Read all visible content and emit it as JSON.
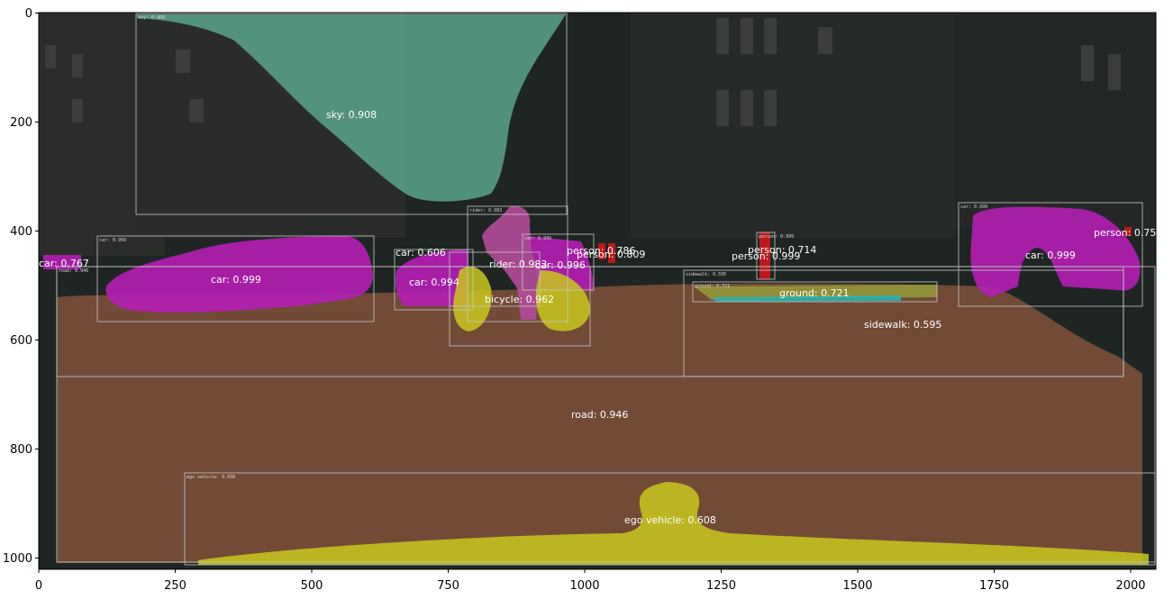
{
  "x_axis": {
    "ticks": [
      "0",
      "250",
      "500",
      "750",
      "1000",
      "1250",
      "1500",
      "1750",
      "2000"
    ]
  },
  "y_axis": {
    "ticks": [
      "0",
      "200",
      "400",
      "600",
      "800",
      "1000"
    ]
  },
  "scene": {
    "description": "dusk city street segmentation overlay"
  },
  "detections": [
    {
      "id": "sky",
      "label": "sky: 0.908",
      "class": "sky",
      "box_label": "sky: 0.908"
    },
    {
      "id": "car-left-big",
      "label": "car: 0.999",
      "class": "car",
      "box_label": "car: 0.999"
    },
    {
      "id": "car-far-left",
      "label": "car: 0.767",
      "class": "car",
      "box_label": "road: 0.946"
    },
    {
      "id": "car-mid-1",
      "label": "car: 0.606",
      "class": "car",
      "box_label": ""
    },
    {
      "id": "car-mid-2",
      "label": "car: 0.994",
      "class": "car",
      "box_label": ""
    },
    {
      "id": "rider",
      "label": "rider: 0.983",
      "class": "rider",
      "box_label": "rider: 0.983"
    },
    {
      "id": "car-center",
      "label": "car: 0.996",
      "class": "car",
      "box_label": "car: 0.996"
    },
    {
      "id": "bicycle",
      "label": "bicycle: 0.962",
      "class": "bicycle",
      "box_label": ""
    },
    {
      "id": "person-1",
      "label": "person: 0.786",
      "class": "person",
      "box_label": ""
    },
    {
      "id": "person-2",
      "label": "person: 0.809",
      "class": "person",
      "box_label": ""
    },
    {
      "id": "person-3",
      "label": "person: 0.714",
      "class": "person",
      "box_label": "person: 0.999"
    },
    {
      "id": "person-4",
      "label": "person: 0.999",
      "class": "person",
      "box_label": ""
    },
    {
      "id": "car-right",
      "label": "car: 0.999",
      "class": "car",
      "box_label": "car: 0.999"
    },
    {
      "id": "person-right",
      "label": "person: 0.75",
      "class": "person",
      "box_label": ""
    },
    {
      "id": "ground",
      "label": "ground: 0.721",
      "class": "ground",
      "box_label": "ground: 0.721"
    },
    {
      "id": "sidewalk",
      "label": "sidewalk: 0.595",
      "class": "sidewalk",
      "box_label": "sidewalk: 0.595"
    },
    {
      "id": "road",
      "label": "road: 0.946",
      "class": "road",
      "box_label": ""
    },
    {
      "id": "ego",
      "label": "ego vehicle: 0.608",
      "class": "ego vehicle",
      "box_label": "ego vehicle: 0.608"
    }
  ],
  "colors": {
    "sky": "#5aa589",
    "car": "#b41eb4",
    "rider": "#b44b9a",
    "bicycle": "#c8c81e",
    "person": "#cc1a1a",
    "road": "#7a5038",
    "ground": "#9aa03a",
    "sidewalk": "#7a5038",
    "ego": "#c8c81e",
    "background": "#1f2624",
    "box": "#d0d0d0"
  }
}
